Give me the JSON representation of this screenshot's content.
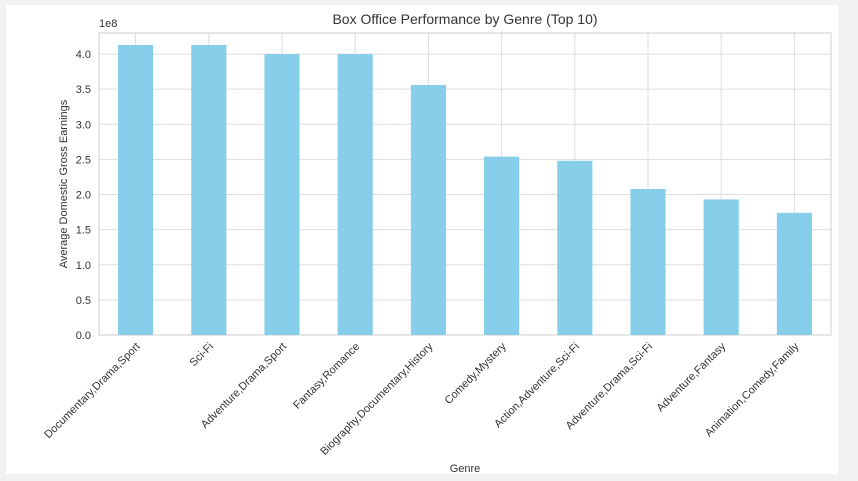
{
  "chart_data": {
    "type": "bar",
    "title": "Box Office Performance by Genre (Top 10)",
    "xlabel": "Genre",
    "ylabel": "Average Domestic Gross Earnings",
    "offset_label": "1e8",
    "categories": [
      "Documentary,Drama,Sport",
      "Sci-Fi",
      "Adventure,Drama,Sport",
      "Fantasy,Romance",
      "Biography,Documentary,History",
      "Comedy,Mystery",
      "Action,Adventure,Sci-Fi",
      "Adventure,Drama,Sci-Fi",
      "Adventure,Fantasy",
      "Animation,Comedy,Family"
    ],
    "values": [
      4.13,
      4.13,
      4.0,
      4.0,
      3.56,
      2.54,
      2.48,
      2.08,
      1.93,
      1.74
    ],
    "ylim": [
      0,
      4.3
    ],
    "yticks": [
      "0.0",
      "0.5",
      "1.0",
      "1.5",
      "2.0",
      "2.5",
      "3.0",
      "3.5",
      "4.0"
    ],
    "grid": true,
    "bar_color": "#87ceeb"
  }
}
